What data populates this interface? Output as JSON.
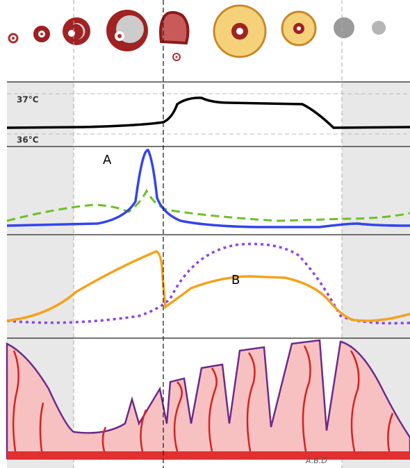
{
  "temperature": {
    "high": "37°C",
    "low": "36°C"
  },
  "hormones": {
    "upper_label": "A",
    "lower_label": "B"
  },
  "signature": "A.B.D"
}
